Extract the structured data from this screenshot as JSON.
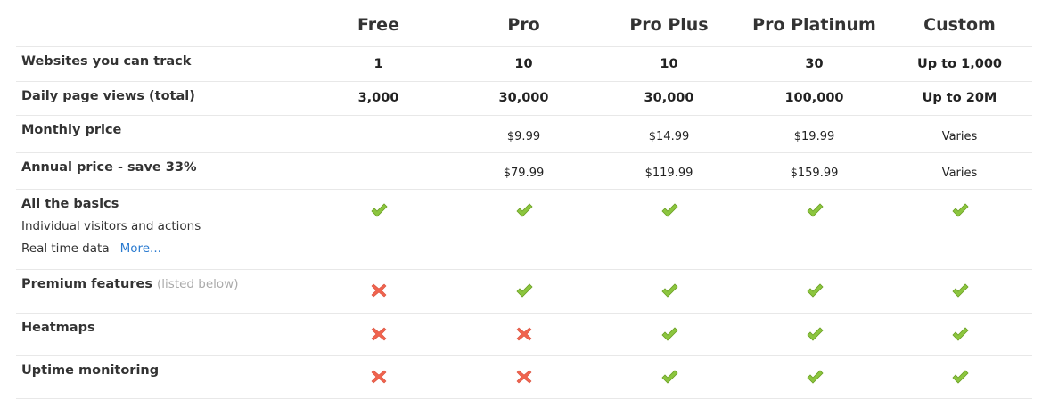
{
  "plans": [
    "Free",
    "Pro",
    "Pro Plus",
    "Pro Platinum",
    "Custom"
  ],
  "rows": [
    {
      "label": "Websites you can track",
      "values": [
        "1",
        "10",
        "10",
        "30",
        "Up to 1,000"
      ]
    },
    {
      "label": "Daily page views (total)",
      "values": [
        "3,000",
        "30,000",
        "30,000",
        "100,000",
        "Up to 20M"
      ]
    },
    {
      "label": "Monthly price",
      "values": [
        "",
        "$9.99",
        "$14.99",
        "$19.99",
        "Varies"
      ]
    },
    {
      "label": "Annual price - save 33%",
      "values": [
        "",
        "$79.99",
        "$119.99",
        "$159.99",
        "Varies"
      ]
    }
  ],
  "basics": {
    "label": "All the basics",
    "line1": "Individual visitors and actions",
    "line2": "Real time data",
    "more_link": "More...",
    "values": [
      "check",
      "check",
      "check",
      "check",
      "check"
    ]
  },
  "features": [
    {
      "label": "Premium features",
      "note": "(listed below)",
      "values": [
        "cross",
        "check",
        "check",
        "check",
        "check"
      ]
    },
    {
      "label": "Heatmaps",
      "note": "",
      "values": [
        "cross",
        "cross",
        "check",
        "check",
        "check"
      ]
    },
    {
      "label": "Uptime monitoring",
      "note": "",
      "values": [
        "cross",
        "cross",
        "check",
        "check",
        "check"
      ]
    }
  ],
  "colors": {
    "check": "#8cc63f",
    "cross": "#f0644f",
    "link": "#2b7bd0"
  }
}
